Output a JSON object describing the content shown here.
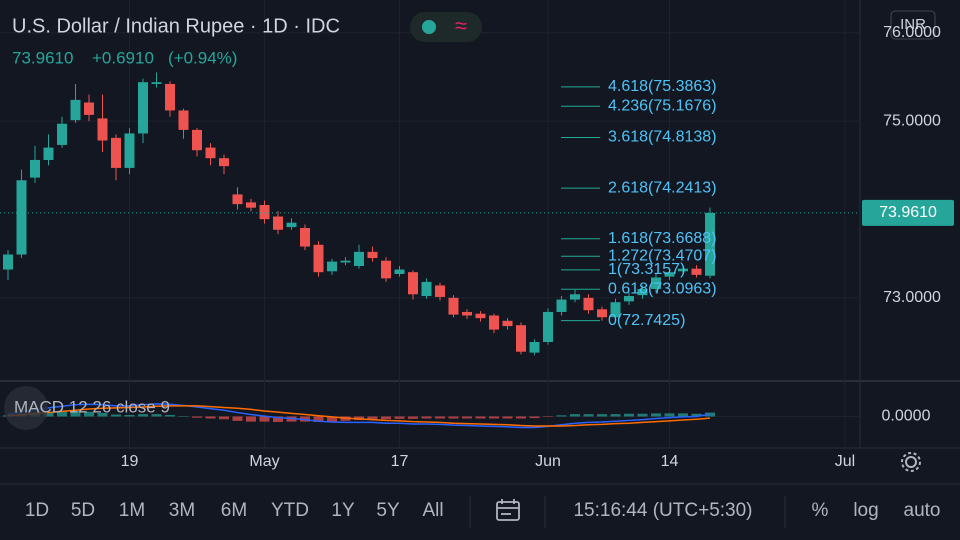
{
  "header": {
    "title": "U.S. Dollar / Indian Rupee · 1D · IDC",
    "price": "73.9610",
    "change": "+0.6910",
    "change_pct": "(+0.94%)",
    "currency": "INR"
  },
  "chart_data": {
    "type": "candlestick",
    "categories": [
      null,
      null,
      null,
      null,
      null,
      null,
      null,
      null,
      null,
      "19",
      null,
      null,
      null,
      null,
      null,
      null,
      null,
      null,
      null,
      "May",
      null,
      null,
      null,
      null,
      null,
      null,
      null,
      null,
      null,
      "17",
      null,
      null,
      null,
      null,
      null,
      null,
      null,
      null,
      null,
      null,
      "Jun",
      null,
      null,
      null,
      null,
      null,
      null,
      null,
      null,
      "14",
      null,
      null,
      null,
      null,
      null,
      null,
      null,
      null,
      null,
      null,
      null,
      null,
      "Jul"
    ],
    "open": [
      73.32,
      73.49,
      74.36,
      74.56,
      74.73,
      75.01,
      75.21,
      75.03,
      74.81,
      74.47,
      74.86,
      75.42,
      75.42,
      75.12,
      74.9,
      74.7,
      74.58,
      74.17,
      74.08,
      74.05,
      73.92,
      73.8,
      73.79,
      73.6,
      73.3,
      73.4,
      73.36,
      73.52,
      73.42,
      73.27,
      73.29,
      73.02,
      73.14,
      73.0,
      72.84,
      72.82,
      72.8,
      72.74,
      72.69,
      72.38,
      72.5,
      72.84,
      72.98,
      73.0,
      72.87,
      72.78,
      72.96,
      73.03,
      73.1,
      73.24,
      73.3,
      73.33,
      73.25,
      null,
      null,
      null,
      null,
      null,
      null,
      null,
      null,
      null,
      null
    ],
    "high": [
      73.54,
      74.45,
      74.72,
      74.85,
      75.05,
      75.42,
      75.3,
      75.3,
      74.85,
      74.92,
      75.48,
      75.55,
      75.45,
      75.14,
      74.92,
      74.75,
      74.62,
      74.25,
      74.12,
      74.1,
      73.98,
      73.9,
      73.83,
      73.64,
      73.44,
      73.46,
      73.6,
      73.58,
      73.46,
      73.36,
      73.31,
      73.22,
      73.17,
      73.03,
      72.87,
      72.85,
      72.82,
      72.77,
      72.72,
      72.53,
      72.88,
      73.02,
      73.09,
      73.04,
      72.9,
      72.99,
      73.06,
      73.14,
      73.27,
      73.33,
      73.36,
      73.37,
      74.02,
      null,
      null,
      null,
      null,
      null,
      null,
      null,
      null,
      null,
      null
    ],
    "low": [
      73.2,
      73.45,
      74.3,
      74.5,
      74.7,
      74.98,
      75.0,
      74.65,
      74.33,
      74.4,
      74.75,
      75.38,
      75.05,
      74.8,
      74.6,
      74.5,
      74.4,
      74.0,
      73.98,
      73.84,
      73.72,
      73.77,
      73.54,
      73.24,
      73.26,
      73.37,
      73.33,
      73.41,
      73.18,
      73.24,
      72.98,
      72.99,
      72.97,
      72.78,
      72.76,
      72.73,
      72.6,
      72.64,
      72.36,
      72.35,
      72.47,
      72.8,
      72.95,
      72.82,
      72.74,
      72.75,
      72.92,
      72.99,
      73.06,
      73.2,
      73.27,
      73.23,
      73.22,
      null,
      null,
      null,
      null,
      null,
      null,
      null,
      null,
      null,
      null
    ],
    "close": [
      73.49,
      74.33,
      74.56,
      74.7,
      74.97,
      75.24,
      75.07,
      74.78,
      74.47,
      74.86,
      75.44,
      75.44,
      75.12,
      74.9,
      74.67,
      74.58,
      74.49,
      74.06,
      74.02,
      73.89,
      73.77,
      73.85,
      73.58,
      73.29,
      73.41,
      73.42,
      73.52,
      73.45,
      73.22,
      73.32,
      73.04,
      73.18,
      73.01,
      72.81,
      72.8,
      72.77,
      72.64,
      72.68,
      72.39,
      72.5,
      72.84,
      72.98,
      73.04,
      72.86,
      72.78,
      72.95,
      73.02,
      73.1,
      73.23,
      73.29,
      73.33,
      73.26,
      73.961,
      null,
      null,
      null,
      null,
      null,
      null,
      null,
      null,
      null,
      null
    ],
    "up_color": "#26a69a",
    "down_color": "#ef5350",
    "ylim": [
      72.07,
      76.37
    ],
    "yticks": [
      {
        "value": 76,
        "label": "76.0000"
      },
      {
        "value": 75,
        "label": "75.0000"
      },
      {
        "value": 73,
        "label": "73.0000"
      }
    ],
    "grid": true,
    "last_price": {
      "value": 73.961,
      "label": "73.9610"
    },
    "fib_color": "#22ab94",
    "fib_levels": [
      {
        "label": "4.618(75.3863)",
        "value": 75.3863
      },
      {
        "label": "4.236(75.1676)",
        "value": 75.1676
      },
      {
        "label": "3.618(74.8138)",
        "value": 74.8138
      },
      {
        "label": "2.618(74.2413)",
        "value": 74.2413
      },
      {
        "label": "1.618(73.6688)",
        "value": 73.6688
      },
      {
        "label": "1.272(73.4707)",
        "value": 73.4707
      },
      {
        "label": "1(73.3157)",
        "value": 73.3157
      },
      {
        "label": "0.618(73.0963)",
        "value": 73.0963
      },
      {
        "label": "0(72.7425)",
        "value": 72.7425
      }
    ],
    "macd": {
      "title": "MACD 12 26 close 9",
      "ylim": [
        -0.8,
        0.8
      ],
      "yticks": [
        {
          "value": 0,
          "label": "0.0000"
        }
      ],
      "series": [
        {
          "name": "MACD",
          "color": "#2962ff",
          "values": [
            0.05,
            0.12,
            0.18,
            0.22,
            0.26,
            0.3,
            0.31,
            0.3,
            0.27,
            0.27,
            0.3,
            0.32,
            0.31,
            0.28,
            0.24,
            0.2,
            0.16,
            0.1,
            0.05,
            0.01,
            -0.03,
            -0.05,
            -0.08,
            -0.12,
            -0.14,
            -0.15,
            -0.15,
            -0.15,
            -0.17,
            -0.17,
            -0.19,
            -0.19,
            -0.2,
            -0.22,
            -0.23,
            -0.24,
            -0.25,
            -0.26,
            -0.28,
            -0.28,
            -0.25,
            -0.21,
            -0.17,
            -0.15,
            -0.14,
            -0.12,
            -0.1,
            -0.08,
            -0.05,
            -0.03,
            -0.01,
            0.0,
            0.06,
            null,
            null,
            null,
            null,
            null,
            null,
            null,
            null,
            null,
            null
          ]
        },
        {
          "name": "Signal",
          "color": "#ff6d00",
          "values": [
            0.02,
            0.04,
            0.07,
            0.1,
            0.13,
            0.16,
            0.19,
            0.21,
            0.22,
            0.23,
            0.24,
            0.26,
            0.27,
            0.27,
            0.27,
            0.25,
            0.23,
            0.21,
            0.18,
            0.14,
            0.11,
            0.08,
            0.05,
            0.02,
            -0.01,
            -0.04,
            -0.06,
            -0.08,
            -0.1,
            -0.11,
            -0.13,
            -0.14,
            -0.15,
            -0.17,
            -0.18,
            -0.19,
            -0.2,
            -0.21,
            -0.23,
            -0.24,
            -0.24,
            -0.24,
            -0.23,
            -0.21,
            -0.2,
            -0.18,
            -0.17,
            -0.15,
            -0.13,
            -0.11,
            -0.09,
            -0.07,
            -0.04,
            null,
            null,
            null,
            null,
            null,
            null,
            null,
            null,
            null,
            null
          ]
        }
      ],
      "histogram": [
        0.03,
        0.08,
        0.11,
        0.12,
        0.13,
        0.14,
        0.12,
        0.09,
        0.05,
        0.04,
        0.06,
        0.06,
        0.04,
        0.01,
        -0.03,
        -0.05,
        -0.07,
        -0.11,
        -0.13,
        -0.13,
        -0.14,
        -0.13,
        -0.13,
        -0.14,
        -0.13,
        -0.11,
        -0.09,
        -0.07,
        -0.07,
        -0.06,
        -0.06,
        -0.05,
        -0.05,
        -0.05,
        -0.05,
        -0.05,
        -0.05,
        -0.05,
        -0.05,
        -0.04,
        -0.01,
        0.03,
        0.06,
        0.06,
        0.06,
        0.06,
        0.07,
        0.07,
        0.08,
        0.08,
        0.08,
        0.07,
        0.1,
        null,
        null,
        null,
        null,
        null,
        null,
        null,
        null,
        null,
        null
      ]
    }
  },
  "toolbar": {
    "ranges": [
      "1D",
      "5D",
      "1M",
      "3M",
      "6M",
      "YTD",
      "1Y",
      "5Y",
      "All"
    ],
    "time": "15:16:44 (UTC+5:30)",
    "options": [
      "%",
      "log",
      "auto"
    ]
  }
}
